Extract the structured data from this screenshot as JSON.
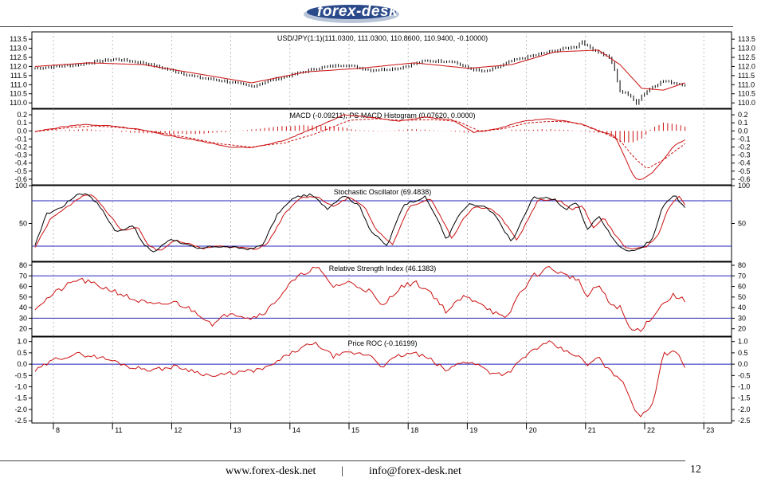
{
  "header": {
    "logo_text": "forex-desk"
  },
  "footer": {
    "website": "www.forex-desk.net",
    "separator": "|",
    "email": "info@forex-desk.net",
    "page_number": "12"
  },
  "colors": {
    "price_up": "#000000",
    "ma_line": "#cc1111",
    "signal_line": "#2222bb",
    "indicator_red": "#cc1111",
    "zero_line": "#2222bb",
    "grid": "#aaaaaa"
  },
  "chart_data": [
    {
      "type": "candlestick",
      "title": "USD/JPY(1:1)(111.0300, 111.0300, 110.8600, 110.9400, -0.10000)",
      "ylim": [
        109.7,
        113.9
      ],
      "yticks": [
        "113.5",
        "113.0",
        "112.5",
        "112.0",
        "111.5",
        "111.0",
        "110.5",
        "110.0"
      ],
      "ytick_values": [
        113.5,
        113.0,
        112.5,
        112.0,
        111.5,
        111.0,
        110.5,
        110.0
      ],
      "x_date_labels": [
        "8",
        "11",
        "12",
        "13",
        "14",
        "15",
        "18",
        "19",
        "20",
        "21",
        "22",
        "23"
      ],
      "close_points": [
        [
          0,
          111.9
        ],
        [
          4,
          112.0
        ],
        [
          8,
          112.1
        ],
        [
          12,
          112.3
        ],
        [
          15,
          112.4
        ],
        [
          20,
          112.2
        ],
        [
          25,
          111.8
        ],
        [
          30,
          111.4
        ],
        [
          35,
          111.2
        ],
        [
          40,
          110.9
        ],
        [
          43,
          111.2
        ],
        [
          47,
          111.5
        ],
        [
          52,
          111.9
        ],
        [
          57,
          112.1
        ],
        [
          62,
          111.8
        ],
        [
          67,
          111.9
        ],
        [
          72,
          112.3
        ],
        [
          77,
          112.3
        ],
        [
          80,
          111.9
        ],
        [
          83,
          111.7
        ],
        [
          85,
          111.9
        ],
        [
          88,
          112.3
        ],
        [
          92,
          112.6
        ],
        [
          95,
          112.8
        ],
        [
          98,
          113.0
        ],
        [
          100,
          113.1
        ],
        [
          101,
          113.4
        ],
        [
          102,
          113.1
        ],
        [
          104,
          112.8
        ],
        [
          106,
          112.5
        ],
        [
          107,
          111.8
        ],
        [
          108,
          110.6
        ],
        [
          109,
          110.6
        ],
        [
          110,
          110.3
        ],
        [
          111,
          110.0
        ],
        [
          112,
          110.4
        ],
        [
          114,
          110.9
        ],
        [
          116,
          111.2
        ],
        [
          118,
          111.1
        ],
        [
          120,
          111.0
        ]
      ],
      "ma_points": [
        [
          0,
          112.0
        ],
        [
          10,
          112.2
        ],
        [
          20,
          112.1
        ],
        [
          30,
          111.6
        ],
        [
          40,
          111.1
        ],
        [
          50,
          111.7
        ],
        [
          60,
          111.9
        ],
        [
          70,
          112.2
        ],
        [
          80,
          111.9
        ],
        [
          88,
          112.1
        ],
        [
          96,
          112.8
        ],
        [
          104,
          112.9
        ],
        [
          108,
          112.1
        ],
        [
          112,
          110.8
        ],
        [
          116,
          110.7
        ],
        [
          120,
          111.1
        ]
      ]
    },
    {
      "type": "line",
      "title": "MACD (-0.09211), PS MACD Histogram (0.07620, 0.0000)",
      "ylim": [
        -0.67,
        0.27
      ],
      "yticks": [
        "0.2",
        "0.1",
        "0.0",
        "-0.1",
        "-0.2",
        "-0.3",
        "-0.4",
        "-0.5",
        "-0.6"
      ],
      "ytick_values": [
        0.2,
        0.1,
        0.0,
        -0.1,
        -0.2,
        -0.3,
        -0.4,
        -0.5,
        -0.6
      ],
      "macd_points": [
        [
          0,
          -0.01
        ],
        [
          5,
          0.05
        ],
        [
          9,
          0.08
        ],
        [
          14,
          0.06
        ],
        [
          19,
          0.02
        ],
        [
          24,
          -0.05
        ],
        [
          30,
          -0.12
        ],
        [
          36,
          -0.2
        ],
        [
          40,
          -0.21
        ],
        [
          46,
          -0.12
        ],
        [
          52,
          0.05
        ],
        [
          57,
          0.2
        ],
        [
          62,
          0.17
        ],
        [
          67,
          0.12
        ],
        [
          72,
          0.17
        ],
        [
          77,
          0.14
        ],
        [
          81,
          -0.02
        ],
        [
          85,
          0.02
        ],
        [
          90,
          0.12
        ],
        [
          95,
          0.15
        ],
        [
          98,
          0.12
        ],
        [
          101,
          0.08
        ],
        [
          104,
          0.0
        ],
        [
          107,
          -0.06
        ],
        [
          109,
          -0.34
        ],
        [
          110,
          -0.5
        ],
        [
          111,
          -0.6
        ],
        [
          112,
          -0.61
        ],
        [
          114,
          -0.52
        ],
        [
          116,
          -0.36
        ],
        [
          118,
          -0.18
        ],
        [
          120,
          -0.11
        ]
      ],
      "signal_points": [
        [
          0,
          -0.01
        ],
        [
          6,
          0.04
        ],
        [
          11,
          0.06
        ],
        [
          16,
          0.04
        ],
        [
          22,
          -0.01
        ],
        [
          28,
          -0.08
        ],
        [
          34,
          -0.16
        ],
        [
          40,
          -0.2
        ],
        [
          46,
          -0.15
        ],
        [
          52,
          -0.03
        ],
        [
          58,
          0.13
        ],
        [
          63,
          0.15
        ],
        [
          68,
          0.13
        ],
        [
          73,
          0.14
        ],
        [
          78,
          0.12
        ],
        [
          82,
          0.0
        ],
        [
          86,
          0.02
        ],
        [
          91,
          0.1
        ],
        [
          96,
          0.12
        ],
        [
          100,
          0.1
        ],
        [
          104,
          0.01
        ],
        [
          108,
          -0.12
        ],
        [
          111,
          -0.36
        ],
        [
          113,
          -0.47
        ],
        [
          116,
          -0.36
        ],
        [
          120,
          -0.16
        ]
      ],
      "histogram_points": [
        [
          0,
          0.0
        ],
        [
          10,
          0.02
        ],
        [
          20,
          -0.03
        ],
        [
          30,
          -0.04
        ],
        [
          38,
          0.0
        ],
        [
          44,
          0.05
        ],
        [
          50,
          0.07
        ],
        [
          56,
          0.05
        ],
        [
          62,
          -0.01
        ],
        [
          70,
          0.02
        ],
        [
          80,
          -0.02
        ],
        [
          88,
          0.01
        ],
        [
          96,
          0.02
        ],
        [
          104,
          -0.02
        ],
        [
          106,
          -0.05
        ],
        [
          108,
          -0.14
        ],
        [
          110,
          -0.15
        ],
        [
          112,
          -0.1
        ],
        [
          114,
          0.04
        ],
        [
          116,
          0.1
        ],
        [
          118,
          0.09
        ],
        [
          120,
          0.05
        ]
      ]
    },
    {
      "type": "line",
      "title": "Stochastic Oscillator (69.4838)",
      "ylim": [
        0,
        100
      ],
      "yticks": [
        "100",
        "50"
      ],
      "ytick_values": [
        100,
        50
      ],
      "reference_lines": [
        80,
        20
      ],
      "k_points": [
        [
          0,
          20
        ],
        [
          2,
          62
        ],
        [
          5,
          72
        ],
        [
          8,
          90
        ],
        [
          10,
          88
        ],
        [
          12,
          72
        ],
        [
          15,
          38
        ],
        [
          18,
          48
        ],
        [
          20,
          22
        ],
        [
          22,
          12
        ],
        [
          25,
          30
        ],
        [
          28,
          22
        ],
        [
          30,
          16
        ],
        [
          33,
          20
        ],
        [
          37,
          18
        ],
        [
          40,
          16
        ],
        [
          42,
          22
        ],
        [
          45,
          65
        ],
        [
          48,
          85
        ],
        [
          51,
          88
        ],
        [
          54,
          70
        ],
        [
          57,
          88
        ],
        [
          60,
          72
        ],
        [
          62,
          40
        ],
        [
          65,
          20
        ],
        [
          68,
          75
        ],
        [
          72,
          85
        ],
        [
          74,
          60
        ],
        [
          76,
          28
        ],
        [
          78,
          58
        ],
        [
          80,
          75
        ],
        [
          83,
          72
        ],
        [
          85,
          60
        ],
        [
          88,
          25
        ],
        [
          92,
          85
        ],
        [
          96,
          82
        ],
        [
          98,
          68
        ],
        [
          100,
          78
        ],
        [
          102,
          42
        ],
        [
          104,
          60
        ],
        [
          106,
          38
        ],
        [
          108,
          18
        ],
        [
          110,
          14
        ],
        [
          112,
          18
        ],
        [
          114,
          30
        ],
        [
          116,
          75
        ],
        [
          118,
          88
        ],
        [
          120,
          70
        ]
      ],
      "d_points": [
        [
          0,
          18
        ],
        [
          3,
          58
        ],
        [
          6,
          72
        ],
        [
          9,
          88
        ],
        [
          11,
          86
        ],
        [
          13,
          68
        ],
        [
          16,
          40
        ],
        [
          19,
          45
        ],
        [
          21,
          20
        ],
        [
          23,
          14
        ],
        [
          26,
          28
        ],
        [
          29,
          22
        ],
        [
          31,
          17
        ],
        [
          34,
          20
        ],
        [
          38,
          18
        ],
        [
          41,
          16
        ],
        [
          43,
          24
        ],
        [
          46,
          62
        ],
        [
          49,
          84
        ],
        [
          52,
          86
        ],
        [
          55,
          72
        ],
        [
          58,
          85
        ],
        [
          61,
          70
        ],
        [
          63,
          42
        ],
        [
          66,
          22
        ],
        [
          69,
          72
        ],
        [
          73,
          83
        ],
        [
          75,
          58
        ],
        [
          77,
          30
        ],
        [
          79,
          56
        ],
        [
          81,
          72
        ],
        [
          84,
          70
        ],
        [
          86,
          58
        ],
        [
          89,
          28
        ],
        [
          93,
          82
        ],
        [
          97,
          80
        ],
        [
          99,
          68
        ],
        [
          101,
          74
        ],
        [
          103,
          44
        ],
        [
          105,
          58
        ],
        [
          107,
          36
        ],
        [
          109,
          18
        ],
        [
          111,
          16
        ],
        [
          113,
          20
        ],
        [
          115,
          34
        ],
        [
          117,
          72
        ],
        [
          119,
          86
        ],
        [
          120,
          75
        ]
      ]
    },
    {
      "type": "line",
      "title": "Relative Strength Index (46.1383)",
      "ylim": [
        13,
        83
      ],
      "yticks": [
        "80",
        "70",
        "60",
        "50",
        "40",
        "30",
        "20"
      ],
      "ytick_values": [
        80,
        70,
        60,
        50,
        40,
        30,
        20
      ],
      "reference_lines": [
        70,
        30
      ],
      "rsi_points": [
        [
          0,
          40
        ],
        [
          4,
          55
        ],
        [
          8,
          67
        ],
        [
          12,
          60
        ],
        [
          15,
          55
        ],
        [
          18,
          48
        ],
        [
          22,
          42
        ],
        [
          26,
          45
        ],
        [
          30,
          35
        ],
        [
          33,
          24
        ],
        [
          36,
          36
        ],
        [
          40,
          30
        ],
        [
          43,
          38
        ],
        [
          47,
          62
        ],
        [
          50,
          74
        ],
        [
          52,
          78
        ],
        [
          55,
          60
        ],
        [
          58,
          64
        ],
        [
          62,
          55
        ],
        [
          64,
          40
        ],
        [
          67,
          58
        ],
        [
          70,
          64
        ],
        [
          73,
          55
        ],
        [
          76,
          36
        ],
        [
          79,
          50
        ],
        [
          82,
          46
        ],
        [
          84,
          38
        ],
        [
          87,
          28
        ],
        [
          89,
          50
        ],
        [
          92,
          70
        ],
        [
          95,
          78
        ],
        [
          98,
          70
        ],
        [
          100,
          68
        ],
        [
          102,
          50
        ],
        [
          104,
          62
        ],
        [
          106,
          44
        ],
        [
          108,
          40
        ],
        [
          110,
          18
        ],
        [
          112,
          20
        ],
        [
          114,
          32
        ],
        [
          116,
          44
        ],
        [
          118,
          52
        ],
        [
          120,
          46
        ]
      ]
    },
    {
      "type": "line",
      "title": "Price ROC (-0.16199)",
      "ylim": [
        -2.6,
        1.2
      ],
      "yticks": [
        "1.0",
        "0.5",
        "0.0",
        "-0.5",
        "-1.0",
        "-1.5",
        "-2.0",
        "-2.5"
      ],
      "ytick_values": [
        1.0,
        0.5,
        0.0,
        -0.5,
        -1.0,
        -1.5,
        -2.0,
        -2.5
      ],
      "reference_lines": [
        0
      ],
      "roc_points": [
        [
          0,
          -0.3
        ],
        [
          4,
          0.25
        ],
        [
          8,
          0.45
        ],
        [
          12,
          0.3
        ],
        [
          15,
          0.1
        ],
        [
          18,
          -0.15
        ],
        [
          22,
          -0.25
        ],
        [
          26,
          -0.1
        ],
        [
          30,
          -0.35
        ],
        [
          33,
          -0.55
        ],
        [
          36,
          -0.4
        ],
        [
          40,
          -0.3
        ],
        [
          43,
          -0.15
        ],
        [
          47,
          0.45
        ],
        [
          50,
          0.8
        ],
        [
          52,
          0.9
        ],
        [
          55,
          0.35
        ],
        [
          58,
          0.5
        ],
        [
          62,
          0.4
        ],
        [
          64,
          -0.1
        ],
        [
          67,
          0.35
        ],
        [
          70,
          0.5
        ],
        [
          73,
          0.2
        ],
        [
          76,
          -0.3
        ],
        [
          79,
          0.15
        ],
        [
          82,
          -0.05
        ],
        [
          84,
          -0.35
        ],
        [
          87,
          -0.45
        ],
        [
          89,
          0.0
        ],
        [
          92,
          0.65
        ],
        [
          95,
          0.95
        ],
        [
          98,
          0.55
        ],
        [
          100,
          0.4
        ],
        [
          102,
          -0.05
        ],
        [
          104,
          0.3
        ],
        [
          106,
          -0.3
        ],
        [
          108,
          -0.6
        ],
        [
          110,
          -1.55
        ],
        [
          111,
          -2.1
        ],
        [
          112,
          -2.3
        ],
        [
          114,
          -1.8
        ],
        [
          116,
          0.55
        ],
        [
          117,
          0.45
        ],
        [
          118,
          0.7
        ],
        [
          120,
          -0.15
        ]
      ]
    }
  ]
}
